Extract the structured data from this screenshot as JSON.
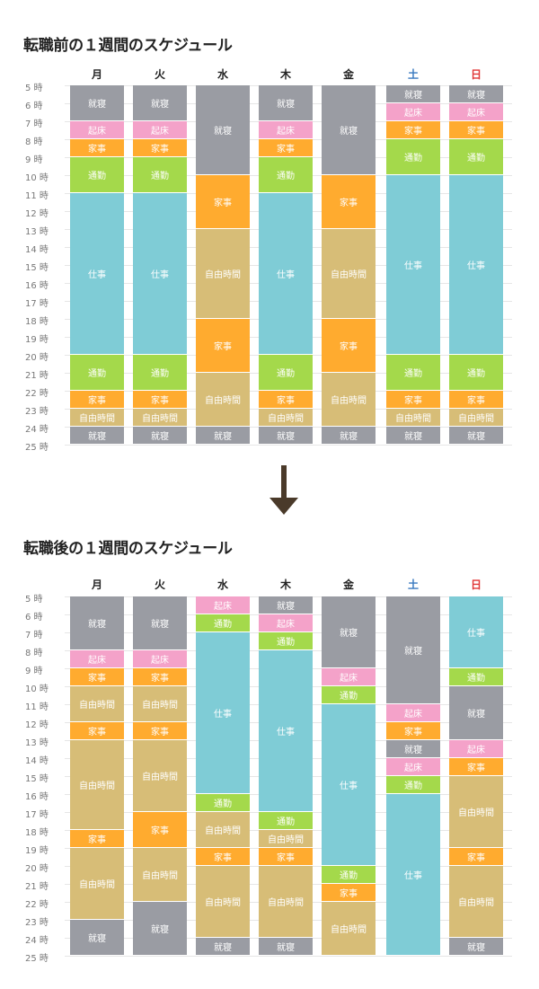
{
  "colors": {
    "就寝": "#9a9ca3",
    "起床": "#f4a2c9",
    "家事": "#ffab2f",
    "通勤": "#a4d94b",
    "仕事": "#7fccd6",
    "自由時間": "#d7bd77",
    "weekday_header": "#222222",
    "saturday_header": "#3a7ac0",
    "sunday_header": "#e03535",
    "arrow": "#4a3a2a"
  },
  "hours": [
    "5 時",
    "6 時",
    "7 時",
    "8 時",
    "9 時",
    "10 時",
    "11 時",
    "12 時",
    "13 時",
    "14 時",
    "15 時",
    "16 時",
    "17 時",
    "18 時",
    "19 時",
    "20 時",
    "21 時",
    "22 時",
    "23 時",
    "24 時",
    "25 時"
  ],
  "before": {
    "title": "転職前の１週間のスケジュール",
    "days": [
      {
        "label": "月",
        "kind": "weekday",
        "blocks": [
          {
            "label": "就寝",
            "start": 5,
            "end": 7
          },
          {
            "label": "起床",
            "start": 7,
            "end": 8
          },
          {
            "label": "家事",
            "start": 8,
            "end": 9
          },
          {
            "label": "通勤",
            "start": 9,
            "end": 11
          },
          {
            "label": "仕事",
            "start": 11,
            "end": 20
          },
          {
            "label": "通勤",
            "start": 20,
            "end": 22
          },
          {
            "label": "家事",
            "start": 22,
            "end": 23
          },
          {
            "label": "自由時間",
            "start": 23,
            "end": 24
          },
          {
            "label": "就寝",
            "start": 24,
            "end": 25
          }
        ]
      },
      {
        "label": "火",
        "kind": "weekday",
        "blocks": [
          {
            "label": "就寝",
            "start": 5,
            "end": 7
          },
          {
            "label": "起床",
            "start": 7,
            "end": 8
          },
          {
            "label": "家事",
            "start": 8,
            "end": 9
          },
          {
            "label": "通勤",
            "start": 9,
            "end": 11
          },
          {
            "label": "仕事",
            "start": 11,
            "end": 20
          },
          {
            "label": "通勤",
            "start": 20,
            "end": 22
          },
          {
            "label": "家事",
            "start": 22,
            "end": 23
          },
          {
            "label": "自由時間",
            "start": 23,
            "end": 24
          },
          {
            "label": "就寝",
            "start": 24,
            "end": 25
          }
        ]
      },
      {
        "label": "水",
        "kind": "weekday",
        "blocks": [
          {
            "label": "就寝",
            "start": 5,
            "end": 10
          },
          {
            "label": "家事",
            "start": 10,
            "end": 13
          },
          {
            "label": "自由時間",
            "start": 13,
            "end": 18
          },
          {
            "label": "家事",
            "start": 18,
            "end": 21
          },
          {
            "label": "自由時間",
            "start": 21,
            "end": 24
          },
          {
            "label": "就寝",
            "start": 24,
            "end": 25
          }
        ]
      },
      {
        "label": "木",
        "kind": "weekday",
        "blocks": [
          {
            "label": "就寝",
            "start": 5,
            "end": 7
          },
          {
            "label": "起床",
            "start": 7,
            "end": 8
          },
          {
            "label": "家事",
            "start": 8,
            "end": 9
          },
          {
            "label": "通勤",
            "start": 9,
            "end": 11
          },
          {
            "label": "仕事",
            "start": 11,
            "end": 20
          },
          {
            "label": "通勤",
            "start": 20,
            "end": 22
          },
          {
            "label": "家事",
            "start": 22,
            "end": 23
          },
          {
            "label": "自由時間",
            "start": 23,
            "end": 24
          },
          {
            "label": "就寝",
            "start": 24,
            "end": 25
          }
        ]
      },
      {
        "label": "金",
        "kind": "weekday",
        "blocks": [
          {
            "label": "就寝",
            "start": 5,
            "end": 10
          },
          {
            "label": "家事",
            "start": 10,
            "end": 13
          },
          {
            "label": "自由時間",
            "start": 13,
            "end": 18
          },
          {
            "label": "家事",
            "start": 18,
            "end": 21
          },
          {
            "label": "自由時間",
            "start": 21,
            "end": 24
          },
          {
            "label": "就寝",
            "start": 24,
            "end": 25
          }
        ]
      },
      {
        "label": "土",
        "kind": "saturday",
        "blocks": [
          {
            "label": "就寝",
            "start": 5,
            "end": 6
          },
          {
            "label": "起床",
            "start": 6,
            "end": 7
          },
          {
            "label": "家事",
            "start": 7,
            "end": 8
          },
          {
            "label": "通勤",
            "start": 8,
            "end": 10
          },
          {
            "label": "仕事",
            "start": 10,
            "end": 20
          },
          {
            "label": "通勤",
            "start": 20,
            "end": 22
          },
          {
            "label": "家事",
            "start": 22,
            "end": 23
          },
          {
            "label": "自由時間",
            "start": 23,
            "end": 24
          },
          {
            "label": "就寝",
            "start": 24,
            "end": 25
          }
        ]
      },
      {
        "label": "日",
        "kind": "sunday",
        "blocks": [
          {
            "label": "就寝",
            "start": 5,
            "end": 6
          },
          {
            "label": "起床",
            "start": 6,
            "end": 7
          },
          {
            "label": "家事",
            "start": 7,
            "end": 8
          },
          {
            "label": "通勤",
            "start": 8,
            "end": 10
          },
          {
            "label": "仕事",
            "start": 10,
            "end": 20
          },
          {
            "label": "通勤",
            "start": 20,
            "end": 22
          },
          {
            "label": "家事",
            "start": 22,
            "end": 23
          },
          {
            "label": "自由時間",
            "start": 23,
            "end": 24
          },
          {
            "label": "就寝",
            "start": 24,
            "end": 25
          }
        ]
      }
    ]
  },
  "after": {
    "title": "転職後の１週間のスケジュール",
    "days": [
      {
        "label": "月",
        "kind": "weekday",
        "blocks": [
          {
            "label": "就寝",
            "start": 5,
            "end": 8
          },
          {
            "label": "起床",
            "start": 8,
            "end": 9
          },
          {
            "label": "家事",
            "start": 9,
            "end": 10
          },
          {
            "label": "自由時間",
            "start": 10,
            "end": 12
          },
          {
            "label": "家事",
            "start": 12,
            "end": 13
          },
          {
            "label": "自由時間",
            "start": 13,
            "end": 18
          },
          {
            "label": "家事",
            "start": 18,
            "end": 19
          },
          {
            "label": "自由時間",
            "start": 19,
            "end": 23
          },
          {
            "label": "就寝",
            "start": 23,
            "end": 25
          }
        ]
      },
      {
        "label": "火",
        "kind": "weekday",
        "blocks": [
          {
            "label": "就寝",
            "start": 5,
            "end": 8
          },
          {
            "label": "起床",
            "start": 8,
            "end": 9
          },
          {
            "label": "家事",
            "start": 9,
            "end": 10
          },
          {
            "label": "自由時間",
            "start": 10,
            "end": 12
          },
          {
            "label": "家事",
            "start": 12,
            "end": 13
          },
          {
            "label": "自由時間",
            "start": 13,
            "end": 17
          },
          {
            "label": "家事",
            "start": 17,
            "end": 19
          },
          {
            "label": "自由時間",
            "start": 19,
            "end": 22
          },
          {
            "label": "就寝",
            "start": 22,
            "end": 25
          }
        ]
      },
      {
        "label": "水",
        "kind": "weekday",
        "blocks": [
          {
            "label": "起床",
            "start": 5,
            "end": 6
          },
          {
            "label": "通勤",
            "start": 6,
            "end": 7
          },
          {
            "label": "仕事",
            "start": 7,
            "end": 16
          },
          {
            "label": "通勤",
            "start": 16,
            "end": 17
          },
          {
            "label": "自由時間",
            "start": 17,
            "end": 19
          },
          {
            "label": "家事",
            "start": 19,
            "end": 20
          },
          {
            "label": "自由時間",
            "start": 20,
            "end": 24
          },
          {
            "label": "就寝",
            "start": 24,
            "end": 25
          }
        ]
      },
      {
        "label": "木",
        "kind": "weekday",
        "blocks": [
          {
            "label": "就寝",
            "start": 5,
            "end": 6
          },
          {
            "label": "起床",
            "start": 6,
            "end": 7
          },
          {
            "label": "通勤",
            "start": 7,
            "end": 8
          },
          {
            "label": "仕事",
            "start": 8,
            "end": 17
          },
          {
            "label": "通勤",
            "start": 17,
            "end": 18
          },
          {
            "label": "自由時間",
            "start": 18,
            "end": 19
          },
          {
            "label": "家事",
            "start": 19,
            "end": 20
          },
          {
            "label": "自由時間",
            "start": 20,
            "end": 24
          },
          {
            "label": "就寝",
            "start": 24,
            "end": 25
          }
        ]
      },
      {
        "label": "金",
        "kind": "weekday",
        "blocks": [
          {
            "label": "就寝",
            "start": 5,
            "end": 9
          },
          {
            "label": "起床",
            "start": 9,
            "end": 10
          },
          {
            "label": "通勤",
            "start": 10,
            "end": 11
          },
          {
            "label": "仕事",
            "start": 11,
            "end": 20
          },
          {
            "label": "通勤",
            "start": 20,
            "end": 21
          },
          {
            "label": "家事",
            "start": 21,
            "end": 22
          },
          {
            "label": "自由時間",
            "start": 22,
            "end": 25
          }
        ]
      },
      {
        "label": "土",
        "kind": "saturday",
        "blocks": [
          {
            "label": "就寝",
            "start": 5,
            "end": 11
          },
          {
            "label": "起床",
            "start": 11,
            "end": 12
          },
          {
            "label": "家事",
            "start": 12,
            "end": 13
          },
          {
            "label": "就寝",
            "start": 13,
            "end": 14
          },
          {
            "label": "起床",
            "start": 14,
            "end": 15
          },
          {
            "label": "通勤",
            "start": 15,
            "end": 16
          },
          {
            "label": "仕事",
            "start": 16,
            "end": 25
          }
        ]
      },
      {
        "label": "日",
        "kind": "sunday",
        "blocks": [
          {
            "label": "仕事",
            "start": 5,
            "end": 9
          },
          {
            "label": "通勤",
            "start": 9,
            "end": 10
          },
          {
            "label": "就寝",
            "start": 10,
            "end": 13
          },
          {
            "label": "起床",
            "start": 13,
            "end": 14
          },
          {
            "label": "家事",
            "start": 14,
            "end": 15
          },
          {
            "label": "自由時間",
            "start": 15,
            "end": 19
          },
          {
            "label": "家事",
            "start": 19,
            "end": 20
          },
          {
            "label": "自由時間",
            "start": 20,
            "end": 24
          },
          {
            "label": "就寝",
            "start": 24,
            "end": 25
          }
        ]
      }
    ]
  }
}
